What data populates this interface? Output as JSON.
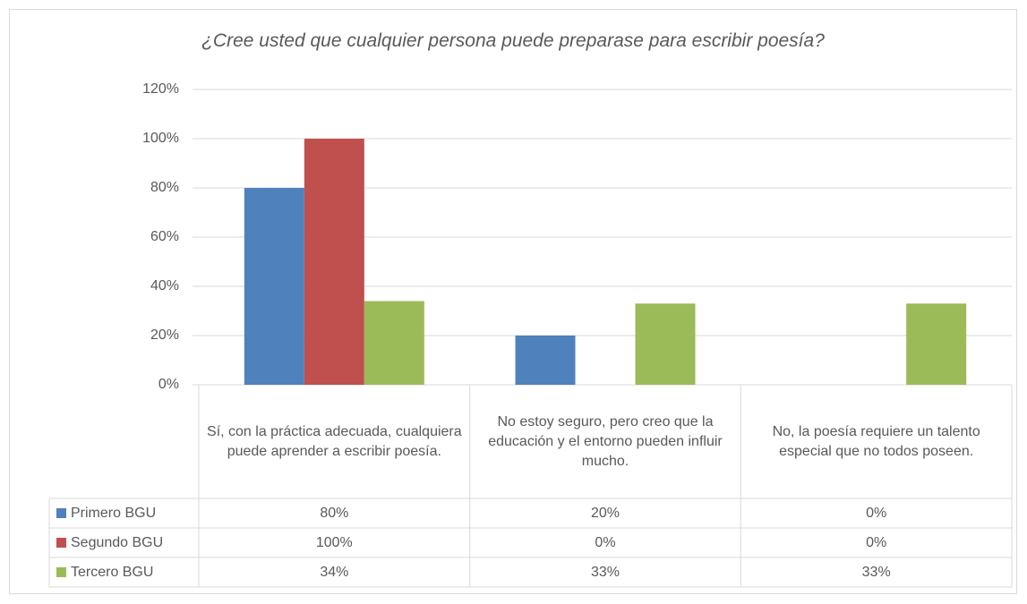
{
  "chart_data": {
    "type": "bar",
    "title": "¿Cree usted que cualquier persona puede preparase para escribir poesía?",
    "categories": [
      "Sí, con la práctica adecuada, cualquiera puede aprender a escribir poesía.",
      "No estoy seguro, pero creo que la educación y el entorno pueden influir mucho.",
      "No, la poesía requiere un talento especial que no todos poseen."
    ],
    "series": [
      {
        "name": "Primero BGU",
        "color": "#4f81bd",
        "values": [
          80,
          20,
          0
        ],
        "value_labels": [
          "80%",
          "20%",
          "0%"
        ]
      },
      {
        "name": "Segundo BGU",
        "color": "#c0504d",
        "values": [
          100,
          0,
          0
        ],
        "value_labels": [
          "100%",
          "0%",
          "0%"
        ]
      },
      {
        "name": "Tercero BGU",
        "color": "#9bbb59",
        "values": [
          34,
          33,
          33
        ],
        "value_labels": [
          "34%",
          "33%",
          "33%"
        ]
      }
    ],
    "ylim": [
      0,
      120
    ],
    "yticks": [
      {
        "value": 0,
        "label": "0%"
      },
      {
        "value": 20,
        "label": "20%"
      },
      {
        "value": 40,
        "label": "40%"
      },
      {
        "value": 60,
        "label": "60%"
      },
      {
        "value": 80,
        "label": "80%"
      },
      {
        "value": 100,
        "label": "100%"
      },
      {
        "value": 120,
        "label": "120%"
      }
    ],
    "grid": true
  }
}
